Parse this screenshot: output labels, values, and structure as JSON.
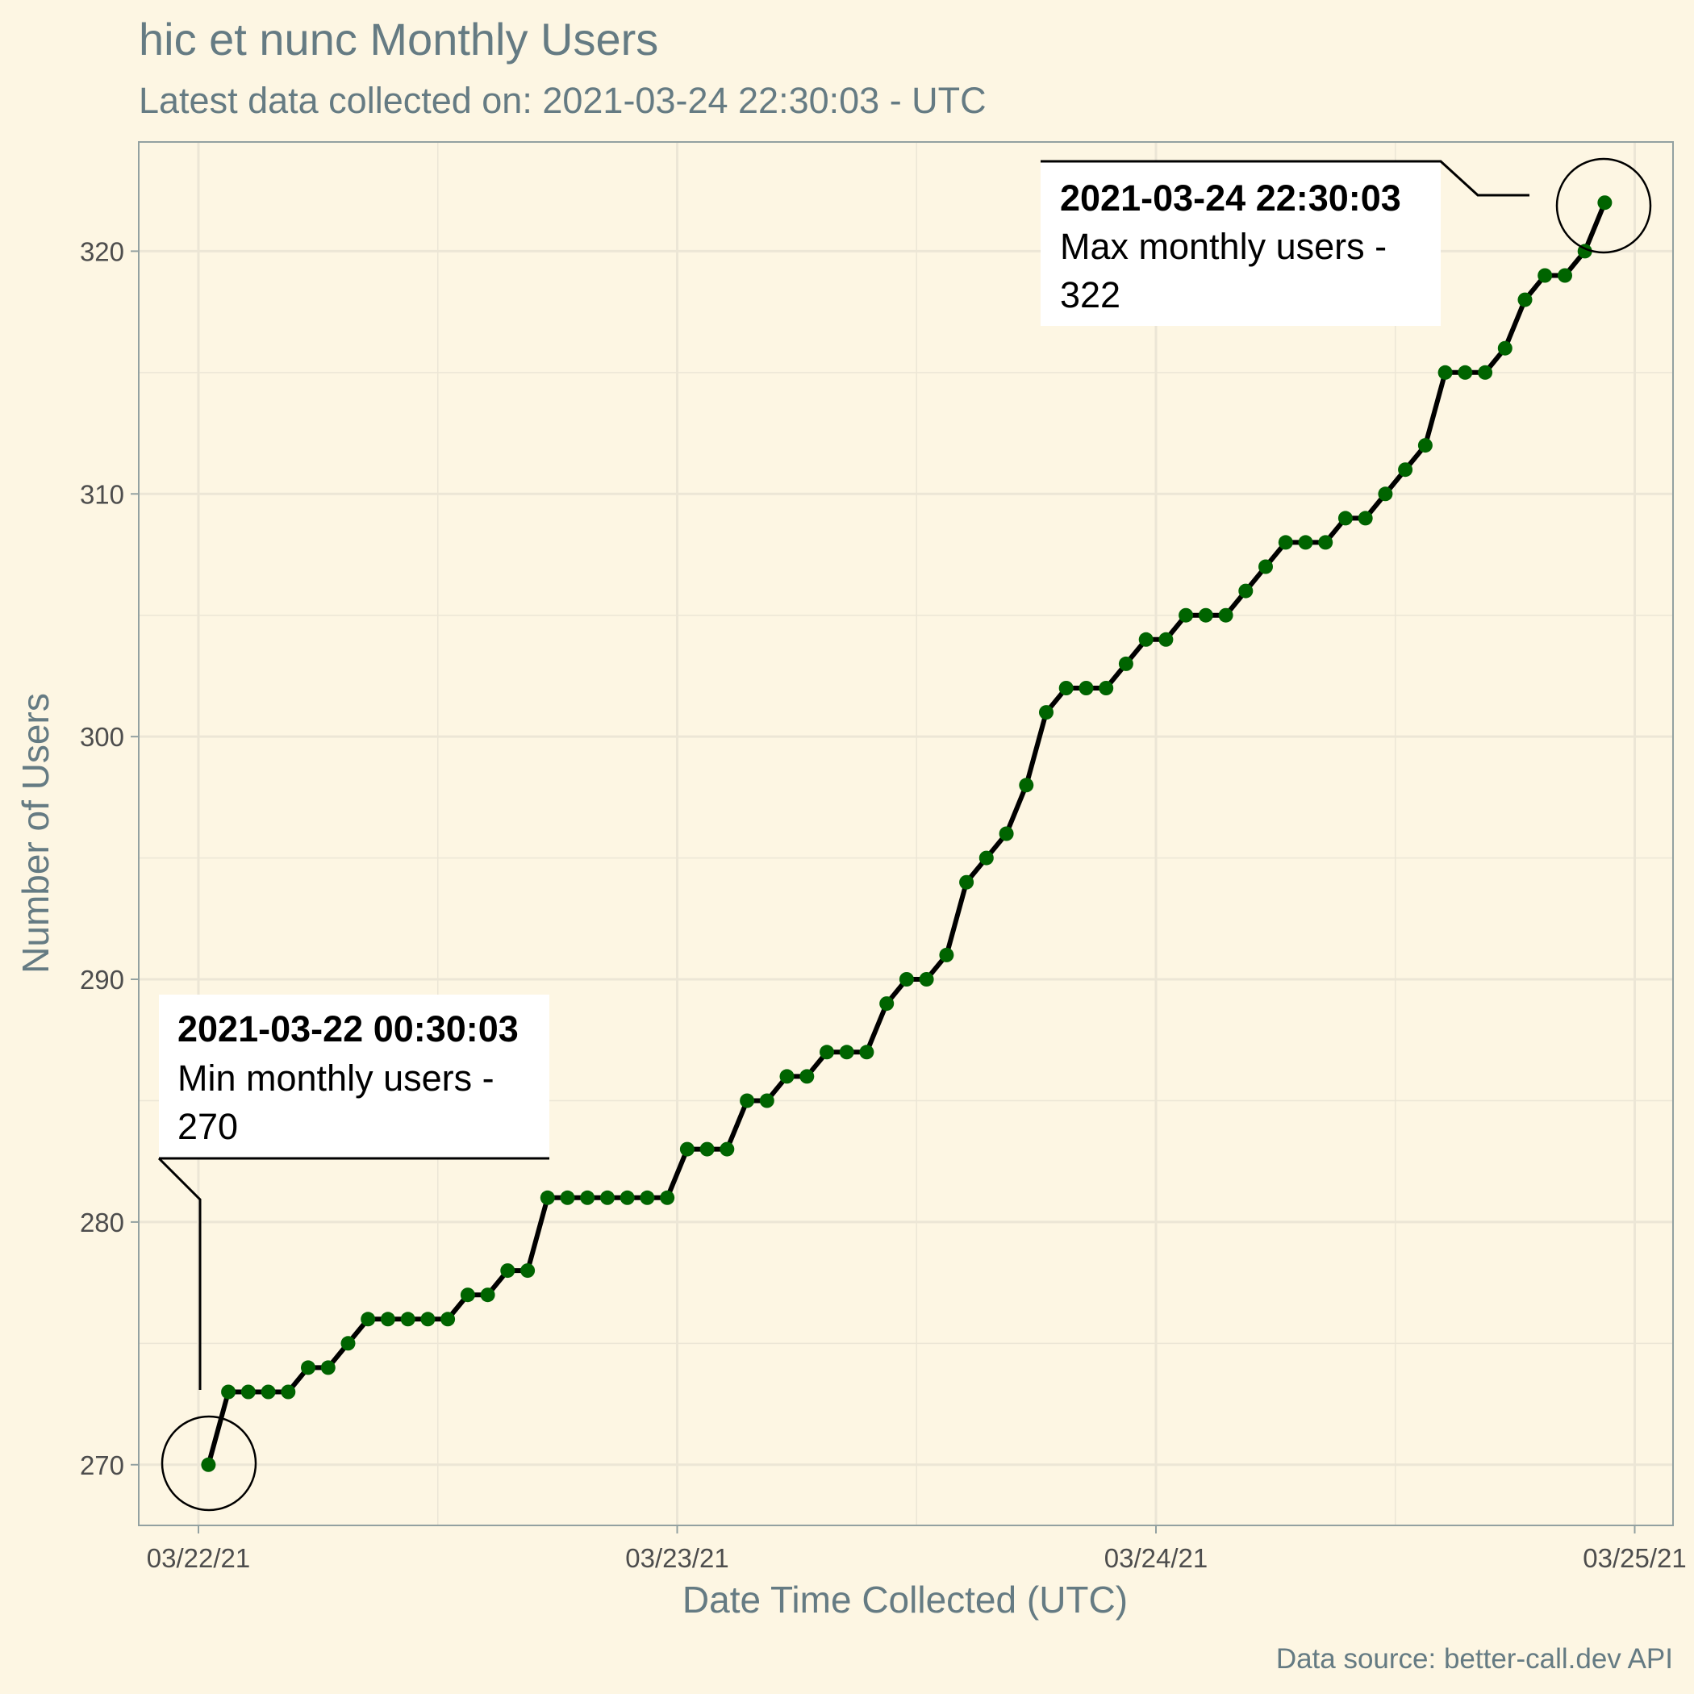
{
  "chart_data": {
    "type": "line",
    "title": "hic et nunc Monthly Users",
    "subtitle": "Latest data collected on: 2021-03-24 22:30:03  - UTC",
    "xlabel": "Date Time Collected (UTC)",
    "ylabel": "Number of Users",
    "caption": "Data source: better-call.dev API",
    "x_ticks": [
      "03/22/21",
      "03/23/21",
      "03/24/21",
      "03/25/21"
    ],
    "y_ticks": [
      270,
      280,
      290,
      300,
      310,
      320
    ],
    "ylim": [
      267.5,
      324.5
    ],
    "grid": true,
    "line_color": "#000000",
    "point_color": "#006400",
    "background": "#fdf6e3",
    "series": [
      {
        "values": [
          270,
          273,
          273,
          273,
          273,
          274,
          274,
          275,
          276,
          276,
          276,
          276,
          276,
          277,
          277,
          278,
          278,
          281,
          281,
          281,
          281,
          281,
          281,
          281,
          283,
          283,
          283,
          285,
          285,
          286,
          286,
          287,
          287,
          287,
          289,
          290,
          290,
          291,
          294,
          295,
          296,
          298,
          301,
          302,
          302,
          302,
          303,
          304,
          304,
          305,
          305,
          305,
          306,
          307,
          308,
          308,
          308,
          309,
          309,
          310,
          311,
          312,
          315,
          315,
          315,
          316,
          318,
          319,
          319,
          320,
          322
        ]
      }
    ],
    "x_range": {
      "start": "2021-03-22 00:30:03",
      "end": "2021-03-24 22:30:03"
    },
    "annotations": [
      {
        "id": "min",
        "title": "2021-03-22 00:30:03",
        "line1": "Min monthly users -",
        "line2": "270"
      },
      {
        "id": "max",
        "title": "2021-03-24 22:30:03",
        "line1": "Max monthly users -",
        "line2": "322"
      }
    ]
  }
}
